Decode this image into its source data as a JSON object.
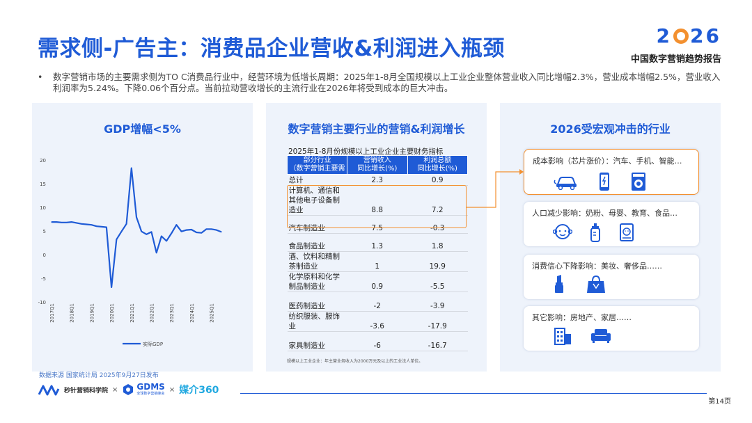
{
  "title": "需求侧-广告主：消费品企业营收&利润进入瓶颈",
  "brand": {
    "year_left": "2",
    "year_right": "26",
    "subtitle": "中国数字营销趋势报告"
  },
  "intro": {
    "bullet": "•",
    "text": "数字营销市场的主要需求侧为TO C消费品行业中，经营环境为低增长周期：2025年1-8月全国规模以上工业企业整体营业收入同比增幅2.3%，营业成本增幅2.5%，营业收入利润率为5.24%。下降0.06个百分点。当前拉动营收增长的主流行业在2026年将受到成本的巨大冲击。"
  },
  "panels": {
    "gdp_title": "GDP增幅<5%",
    "table_title": "数字营销主要行业的营销&利润增长",
    "impact_title": "2026受宏观冲击的行业"
  },
  "chart_data": {
    "type": "line",
    "title": "",
    "x": [
      "2017Q1",
      "2017Q2",
      "2017Q3",
      "2017Q4",
      "2018Q1",
      "2018Q2",
      "2018Q3",
      "2018Q4",
      "2019Q1",
      "2019Q2",
      "2019Q3",
      "2019Q4",
      "2020Q1",
      "2020Q2",
      "2020Q3",
      "2020Q4",
      "2021Q1",
      "2021Q2",
      "2021Q3",
      "2021Q4",
      "2022Q1",
      "2022Q2",
      "2022Q3",
      "2022Q4",
      "2023Q1",
      "2023Q2",
      "2023Q3",
      "2023Q4",
      "2024Q1",
      "2024Q2",
      "2024Q3",
      "2024Q4",
      "2025Q1",
      "2025Q2",
      "2025Q3"
    ],
    "xtick_labels": [
      "2017Q1",
      "2018Q1",
      "2019Q1",
      "2020Q1",
      "2021Q1",
      "2022Q1",
      "2023Q1",
      "2024Q1",
      "2025Q1"
    ],
    "xtick_index": [
      0,
      4,
      8,
      12,
      16,
      20,
      24,
      28,
      32
    ],
    "series": [
      {
        "name": "实际GDP",
        "color": "#1f5bd6",
        "values": [
          6.9,
          6.9,
          6.8,
          6.8,
          6.9,
          6.7,
          6.5,
          6.4,
          6.3,
          6.0,
          5.9,
          5.8,
          -6.9,
          3.2,
          4.9,
          6.5,
          18.3,
          7.9,
          4.9,
          4.3,
          4.8,
          0.4,
          3.9,
          2.9,
          4.5,
          6.3,
          4.9,
          5.2,
          5.3,
          4.7,
          4.6,
          5.4,
          5.4,
          5.2,
          4.8
        ]
      }
    ],
    "ylim": [
      -10,
      20
    ],
    "yticks": [
      "20",
      "15",
      "10",
      "5",
      "0",
      "-5",
      "-10"
    ],
    "ytick_values": [
      20,
      15,
      10,
      5,
      0,
      -5,
      -10
    ],
    "legend": "bottom"
  },
  "table": {
    "caption": "2025年1-8月份规模以上工业企业主要财务指标",
    "headers": [
      "部分行业\n（数字营销主要需",
      "营销收入\n同比增长(%)",
      "利润总额\n同比增长(%)"
    ],
    "rows": [
      {
        "name": "总计",
        "revenue": "2.3",
        "profit": "0.9"
      },
      {
        "name": "计算机、通信和其他电子设备制造业",
        "revenue": "8.8",
        "profit": "7.2"
      },
      {
        "name": "汽车制造业",
        "revenue": "7.5",
        "profit": "-0.3"
      },
      {
        "name": "食品制造业",
        "revenue": "1.3",
        "profit": "1.8"
      },
      {
        "name": "酒、饮料和精制茶制造业",
        "revenue": "1",
        "profit": "19.9"
      },
      {
        "name": "化学原料和化学制品制造业",
        "revenue": "0.9",
        "profit": "-5.5"
      },
      {
        "name": "医药制造业",
        "revenue": "-2",
        "profit": "-3.9"
      },
      {
        "name": "纺织服装、服饰业",
        "revenue": "-3.6",
        "profit": "-17.9"
      },
      {
        "name": "家具制造业",
        "revenue": "-6",
        "profit": "-16.7"
      }
    ],
    "note": "规模以上工业企业：年主营业务收入为2000万元及以上的工业法人单位。"
  },
  "impacts": [
    {
      "label": "成本影响（芯片涨价）：汽车、手机、智能…",
      "icons": [
        "car-icon",
        "phone-icon",
        "washing-machine-icon"
      ]
    },
    {
      "label": "人口减少影响：奶粉、母婴、教育、食品…",
      "icons": [
        "baby-icon",
        "baby-bottle-icon",
        "book-icon"
      ]
    },
    {
      "label": "消费信心下降影响：美妆、奢侈品……",
      "icons": [
        "lipstick-icon",
        "handbag-icon"
      ]
    },
    {
      "label": "其它影响：房地产、家居……",
      "icons": [
        "building-icon",
        "sofa-icon"
      ]
    }
  ],
  "source": "数据来源   国家统计局  2025年9月27日发布",
  "footer": {
    "logo1": "秒针营销科学院",
    "x1": "×",
    "logo2": "GDMS",
    "logo2_sub": "全球数字营销峰会",
    "x2": "×",
    "logo3": "媒介360",
    "page": "第14页"
  },
  "colors": {
    "primary": "#1f5bd6",
    "accent": "#f3902f",
    "panel_bg": "#eef3fb"
  }
}
